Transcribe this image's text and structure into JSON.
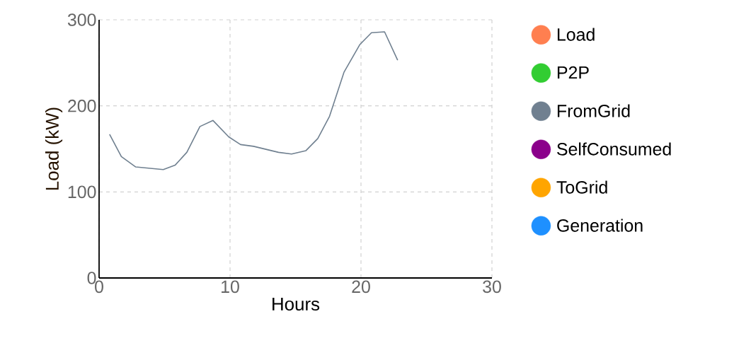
{
  "chart_data": {
    "type": "line",
    "xlabel": "Hours",
    "ylabel": "Load (kW)",
    "xlim": [
      0,
      30
    ],
    "xticks": [
      0,
      10,
      20,
      30
    ],
    "ylim": [
      0,
      300
    ],
    "yticks": [
      0,
      100,
      200,
      300
    ],
    "grid": true,
    "legend": "right",
    "series": [
      {
        "name": "Load",
        "color": "#ff7f50"
      },
      {
        "name": "P2P",
        "color": "#32cd32"
      },
      {
        "name": "FromGrid",
        "color": "#708090",
        "x": [
          0.8,
          1.7,
          2.8,
          4.9,
          5.8,
          6.7,
          7.7,
          8.7,
          9.9,
          10.8,
          11.8,
          13.7,
          14.7,
          15.8,
          16.7,
          17.6,
          18.7,
          19.9,
          20.8,
          21.8,
          22.8
        ],
        "values": [
          167,
          141,
          129,
          126,
          131,
          146,
          176,
          183,
          164,
          155,
          153,
          146,
          144,
          148,
          162,
          188,
          239,
          271,
          285,
          286,
          253
        ]
      },
      {
        "name": "SelfConsumed",
        "color": "#8b008b"
      },
      {
        "name": "ToGrid",
        "color": "#ffa500"
      },
      {
        "name": "Generation",
        "color": "#1e90ff"
      }
    ]
  }
}
